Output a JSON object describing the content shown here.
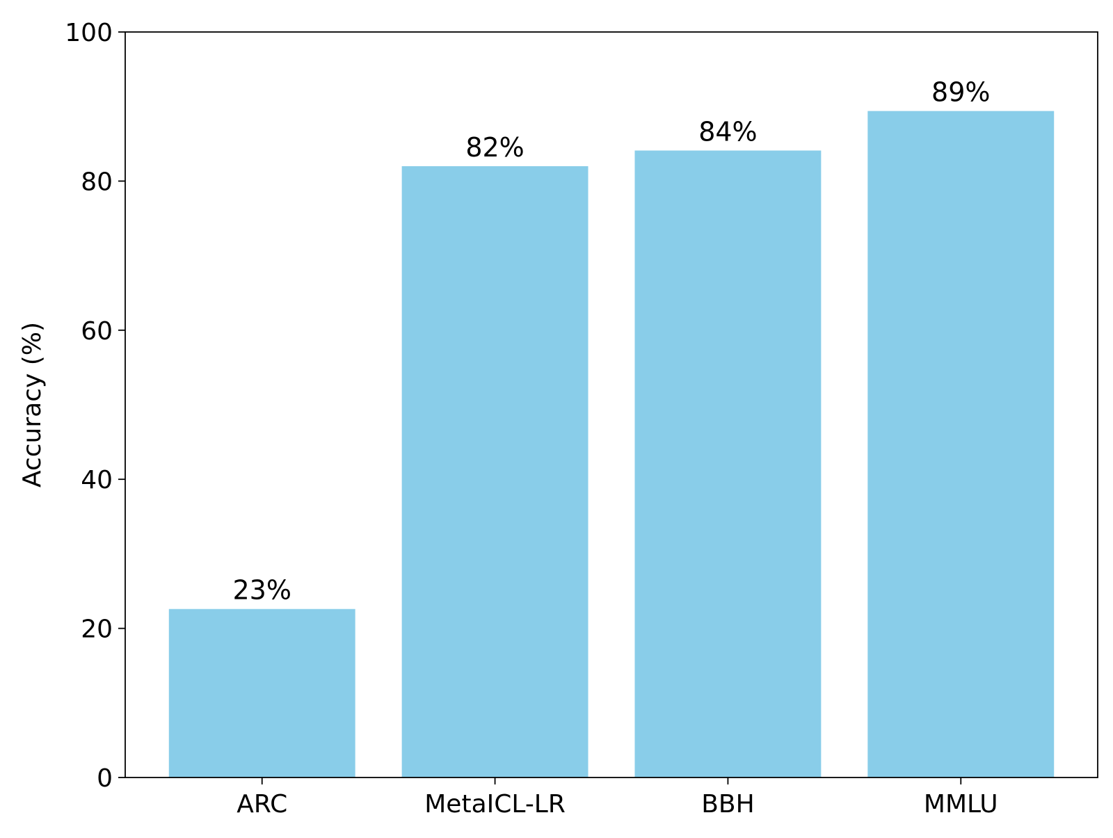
{
  "chart_data": {
    "type": "bar",
    "title": "",
    "xlabel": "",
    "ylabel": "Accuracy (%)",
    "categories": [
      "ARC",
      "MetaICL-LR",
      "BBH",
      "MMLU"
    ],
    "values": [
      22.6,
      82.0,
      84.1,
      89.4
    ],
    "data_labels": [
      "23%",
      "82%",
      "84%",
      "89%"
    ],
    "ylim": [
      0,
      100
    ],
    "yticks": [
      0,
      20,
      40,
      60,
      80,
      100
    ],
    "ytick_labels": [
      "0",
      "20",
      "40",
      "60",
      "80",
      "100"
    ],
    "bar_color": "#89CDE9",
    "grid": false,
    "legend": "none"
  }
}
